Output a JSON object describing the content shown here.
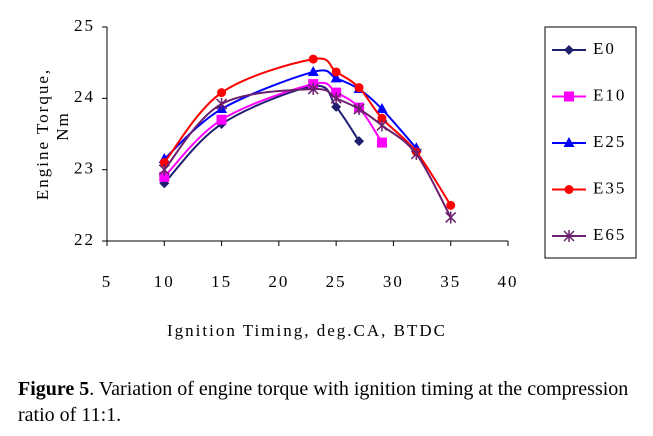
{
  "chart_data": {
    "type": "line",
    "y_label": "Engine Torque,",
    "y_label_unit": "Nm",
    "x_label": "Ignition Timing, deg.CA, BTDC",
    "xlim": [
      5,
      40
    ],
    "xticks": [
      5,
      10,
      15,
      20,
      25,
      30,
      35,
      40
    ],
    "ylim": [
      22,
      25
    ],
    "yticks": [
      22,
      23,
      24,
      25
    ],
    "grid": false,
    "legend": "right",
    "series": [
      {
        "name": "E0",
        "color": "#1f1f70",
        "marker": "diamond",
        "x": [
          10,
          15,
          23,
          25,
          27
        ],
        "values": [
          22.81,
          23.64,
          24.17,
          23.88,
          23.4
        ]
      },
      {
        "name": "E10",
        "color": "#ff00ff",
        "marker": "square",
        "x": [
          10,
          15,
          23,
          25,
          27,
          29
        ],
        "values": [
          22.9,
          23.7,
          24.2,
          24.08,
          23.87,
          23.38
        ]
      },
      {
        "name": "E25",
        "color": "#0000ff",
        "marker": "triangle",
        "x": [
          10,
          15,
          23,
          25,
          27,
          29,
          32
        ],
        "values": [
          23.15,
          23.85,
          24.37,
          24.28,
          24.13,
          23.85,
          23.3
        ]
      },
      {
        "name": "E35",
        "color": "#ff0000",
        "marker": "circle",
        "x": [
          10,
          15,
          23,
          25,
          27,
          29,
          32,
          35
        ],
        "values": [
          23.1,
          24.08,
          24.55,
          24.37,
          24.15,
          23.72,
          23.25,
          22.5
        ]
      },
      {
        "name": "E65",
        "color": "#6b1f6e",
        "marker": "star",
        "x": [
          10,
          15,
          23,
          25,
          27,
          29,
          32,
          35
        ],
        "values": [
          23.0,
          23.92,
          24.13,
          24.0,
          23.85,
          23.62,
          23.22,
          22.33
        ]
      }
    ]
  },
  "caption": {
    "label": "Figure 5",
    "text": ". Variation of engine torque with ignition timing at the compression ratio of 11:1."
  }
}
